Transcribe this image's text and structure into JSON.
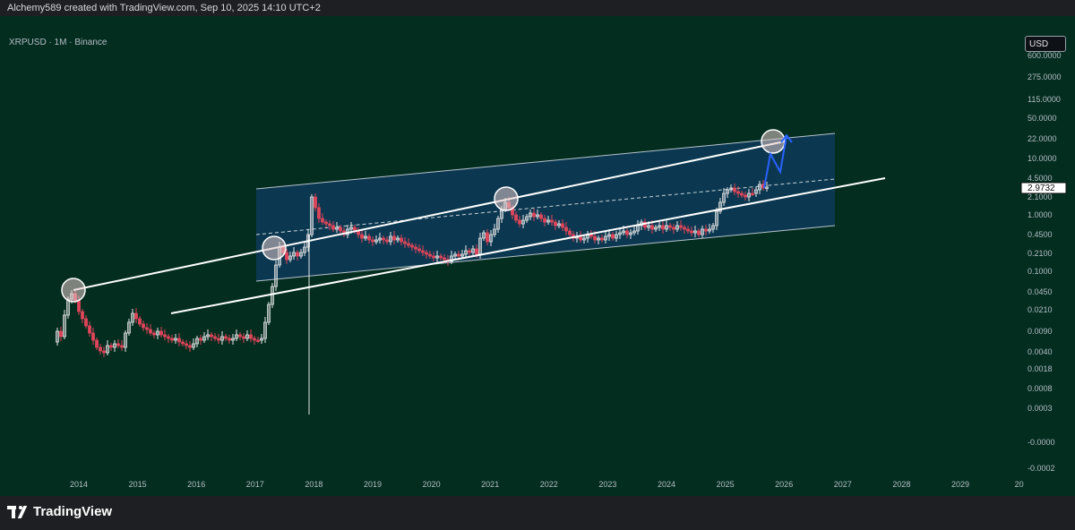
{
  "header": {
    "credit": "Alchemy589 created with TradingView.com, Sep 10, 2025 14:10 UTC+2"
  },
  "symbol_line": "XRPUSD · 1M · Binance",
  "currency": "USD",
  "footer": {
    "brand": "TradingView"
  },
  "colors": {
    "background": "#022d1f",
    "channel_fill": "#0c3a55",
    "bull": "#e8e8e8",
    "bear": "#e0455a",
    "projection": "#2962ff",
    "axis_text": "#b8bdc4"
  },
  "chart_data": {
    "type": "candlestick",
    "x_ticks": [
      "2014",
      "2015",
      "2016",
      "2017",
      "2018",
      "2019",
      "2020",
      "2021",
      "2022",
      "2023",
      "2024",
      "2025",
      "2026",
      "2027",
      "2028",
      "2029",
      "20"
    ],
    "y_scale": "log",
    "y_ticks": [
      "600.0000",
      "275.0000",
      "115.0000",
      "50.0000",
      "22.0000",
      "10.0000",
      "4.5000",
      "2.1000",
      "1.0000",
      "0.4500",
      "0.2100",
      "0.1000",
      "0.0450",
      "0.0210",
      "0.0090",
      "0.0040",
      "0.0018",
      "0.0008",
      "0.0003",
      "-0.0000",
      "-0.0002"
    ],
    "last_price": "2.9732",
    "annotations": [
      "ascending channel",
      "upper trendline",
      "lower trendline",
      "touch circles",
      "projected move"
    ]
  }
}
